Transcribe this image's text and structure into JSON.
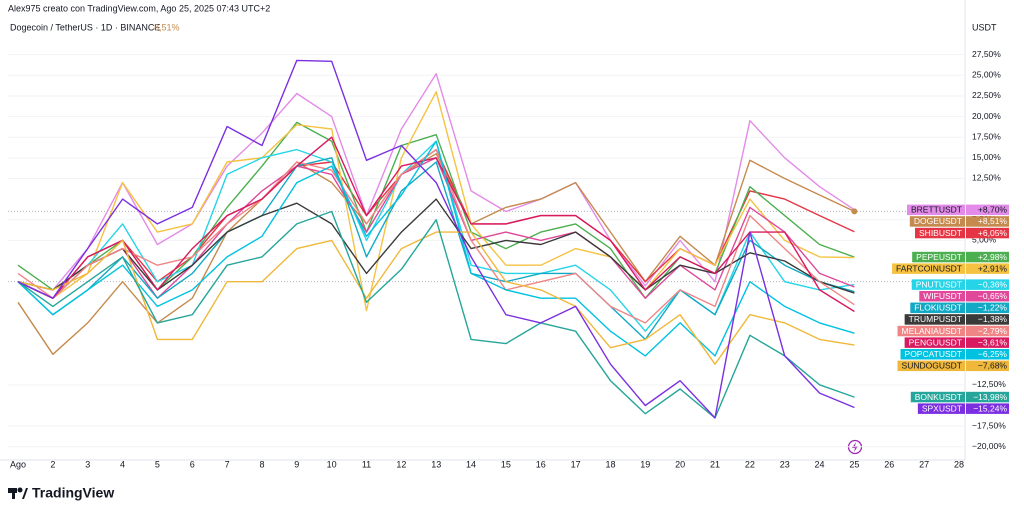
{
  "chart_data": {
    "type": "line",
    "attribution": "Alex975 creato con TradingView.com, Ago 25, 2025 07:43 UTC+2",
    "title": "Dogecoin / TetherUS · 1D · BINANCE",
    "title_change": "8,51%",
    "y_axis_label": "USDT",
    "logo": "TradingView",
    "categories": [
      "Ago",
      "2",
      "3",
      "4",
      "5",
      "6",
      "7",
      "8",
      "9",
      "10",
      "11",
      "12",
      "13",
      "14",
      "15",
      "16",
      "17",
      "18",
      "19",
      "20",
      "21",
      "22",
      "23",
      "24",
      "25",
      "26",
      "27",
      "28"
    ],
    "ylim": [
      -21,
      31.7
    ],
    "yticks": [
      {
        "value": -20,
        "label": "−20,00%"
      },
      {
        "value": -17.5,
        "label": "−17,50%"
      },
      {
        "value": -12.5,
        "label": "−12,50%"
      },
      {
        "value": 5,
        "label": "5,00%"
      },
      {
        "value": 7.5,
        "label": "7,50%"
      },
      {
        "value": 12.5,
        "label": "12,50%"
      },
      {
        "value": 15,
        "label": "15,00%"
      },
      {
        "value": 17.5,
        "label": "17,50%"
      },
      {
        "value": 20,
        "label": "20,00%"
      },
      {
        "value": 22.5,
        "label": "22,50%"
      },
      {
        "value": 25,
        "label": "25,00%"
      },
      {
        "value": 27.5,
        "label": "27,50%"
      }
    ],
    "grid": true,
    "series": [
      {
        "name": "BRETTUSDT",
        "color": "#e38be8",
        "value_labels": [
          "+8,70%"
        ],
        "values": [
          0,
          -1,
          4,
          12,
          4.5,
          7,
          14,
          18,
          22.8,
          20,
          8,
          18.5,
          25.2,
          11,
          8.5,
          10,
          12,
          5,
          -0.5,
          5,
          0,
          19.5,
          15,
          11.5,
          8.7,
          null,
          null,
          null
        ]
      },
      {
        "name": "DOGEUSDT",
        "color": "#c58a4e",
        "value_labels": [
          "+8,51%"
        ],
        "values": [
          -2.5,
          -8.8,
          -5,
          0,
          -5,
          -2,
          6,
          10,
          14.5,
          12,
          7,
          13,
          15.5,
          7,
          9,
          10,
          12,
          6,
          0,
          5.5,
          2,
          14.7,
          12.5,
          10.5,
          8.51,
          null,
          null,
          null
        ]
      },
      {
        "name": "SHIBUSDT",
        "color": "#e53545",
        "value_labels": [
          "+6,05%"
        ],
        "values": [
          0,
          -2,
          3,
          5,
          0,
          3,
          8,
          10,
          14,
          14.5,
          8,
          13,
          16,
          7,
          7,
          8,
          8,
          5,
          0,
          4,
          2,
          11,
          10,
          8,
          6.05,
          null,
          null,
          null
        ]
      },
      {
        "name": "PEPEUSDT",
        "color": "#4caf50",
        "value_labels": [
          "+2,98%"
        ],
        "values": [
          2,
          -1,
          2,
          5,
          -1,
          3,
          9,
          14,
          19.3,
          17,
          6,
          16.5,
          17.8,
          6,
          4,
          6,
          7,
          4,
          -2,
          3,
          1,
          11.5,
          8,
          4.5,
          2.98,
          null,
          null,
          null
        ]
      },
      {
        "name": "FARTCOINUSDT",
        "color": "#f5c242",
        "value_labels": [
          "+2,91%"
        ],
        "values": [
          0,
          -2,
          1,
          12,
          6,
          7,
          14.5,
          15,
          19,
          18.5,
          -3.5,
          15,
          23,
          7,
          2,
          2,
          4,
          3,
          -1,
          4,
          2,
          10,
          5,
          3,
          2.91,
          null,
          null,
          null
        ]
      },
      {
        "name": "PNUTUSDT",
        "color": "#26d4e8",
        "value_labels": [
          "−0,36%"
        ],
        "values": [
          0,
          -2,
          2,
          7,
          0,
          2,
          13,
          15,
          16,
          14.5,
          5,
          13,
          17,
          2,
          1,
          1,
          2,
          -1,
          -6,
          -1,
          -4,
          6,
          0,
          -1,
          -0.36,
          null,
          null,
          null
        ]
      },
      {
        "name": "WIFUSDT",
        "color": "#e0489a",
        "value_labels": [
          "−0,65%"
        ],
        "values": [
          0,
          -2,
          2,
          4,
          -2,
          2,
          7,
          11,
          14,
          13,
          6,
          13,
          15,
          5,
          6,
          5,
          6,
          3,
          -2,
          2,
          -1,
          9,
          6,
          1,
          -0.65,
          null,
          null,
          null
        ]
      },
      {
        "name": "FLOKIUSDT",
        "color": "#12a9c4",
        "value_labels": [
          "−1,22%"
        ],
        "values": [
          0,
          -4,
          -1,
          3,
          -2,
          1,
          6,
          8,
          14,
          15,
          3,
          11,
          14.5,
          1,
          0,
          1,
          1,
          -3,
          -7,
          -1,
          -4,
          5,
          2,
          0,
          -1.22,
          null,
          null,
          null
        ]
      },
      {
        "name": "TRUMPUSDT",
        "color": "#3a3a3a",
        "value_labels": [
          "−1,38%"
        ],
        "values": [
          0,
          -1,
          2,
          4,
          -1,
          2,
          6,
          8,
          9.5,
          7,
          1,
          6,
          10,
          4,
          5,
          4.5,
          6,
          3,
          -1,
          2,
          1,
          3.5,
          2.5,
          0,
          -1.38,
          null,
          null,
          null
        ]
      },
      {
        "name": "MELANIAUSDT",
        "color": "#f08585",
        "value_labels": [
          "−2,79%"
        ],
        "values": [
          1,
          -2,
          2,
          4,
          2,
          3,
          7,
          10,
          14.5,
          13.5,
          7,
          13,
          16,
          5,
          -1,
          0,
          1,
          -3,
          -5,
          -1,
          -3,
          8,
          4,
          0,
          -2.79,
          null,
          null,
          null
        ]
      },
      {
        "name": "PENGUUSDT",
        "color": "#d81b60",
        "value_labels": [
          "−3,61%"
        ],
        "values": [
          0,
          -2,
          3,
          5,
          -1,
          4,
          8,
          10,
          14,
          17.5,
          8,
          14,
          15,
          7,
          7,
          8,
          8,
          5,
          -1,
          3,
          1,
          6,
          6,
          -1,
          -3.61,
          null,
          null,
          null
        ]
      },
      {
        "name": "POPCATUSDT",
        "color": "#00c2e0",
        "value_labels": [
          "−6,25%"
        ],
        "values": [
          0,
          -4,
          -1,
          2,
          -3,
          -1,
          3,
          5.5,
          12,
          14,
          5.5,
          10.5,
          17,
          1,
          -1,
          -2,
          -2,
          -6,
          -9,
          -5,
          -9,
          0,
          -3,
          -5,
          -6.25,
          null,
          null,
          null
        ]
      },
      {
        "name": "SUNDOGUSDT",
        "color": "#f0b83a",
        "value_labels": [
          "−7,68%"
        ],
        "values": [
          0,
          -1,
          1,
          5,
          -7,
          -7,
          0,
          0,
          4,
          5,
          -2,
          4,
          6,
          6,
          0,
          -1,
          -3,
          -8,
          -7,
          -4,
          -10,
          -4,
          -5,
          -7,
          -7.68,
          null,
          null,
          null
        ]
      },
      {
        "name": "BONKUSDT",
        "color": "#26a69a",
        "value_labels": [
          "−13,98%"
        ],
        "values": [
          0,
          -3,
          0,
          3,
          -5,
          -4,
          2,
          3,
          7,
          8.5,
          -2.5,
          1.5,
          7.5,
          -7,
          -7.5,
          -5,
          -6,
          -12,
          -16,
          -13,
          -16.5,
          -6.5,
          -9,
          -12.5,
          -13.98,
          null,
          null,
          null
        ]
      },
      {
        "name": "SPXUSDT",
        "color": "#7b2fe0",
        "value_labels": [
          "−15,24%"
        ],
        "values": [
          0,
          -2,
          4,
          10,
          7,
          9,
          18.8,
          16.5,
          26.8,
          26.7,
          14.7,
          16.5,
          12,
          3,
          -4,
          -5,
          -3,
          -10,
          -15,
          -12,
          -16.5,
          6,
          -9,
          -13.5,
          -15.24,
          null,
          null,
          null
        ]
      }
    ]
  }
}
